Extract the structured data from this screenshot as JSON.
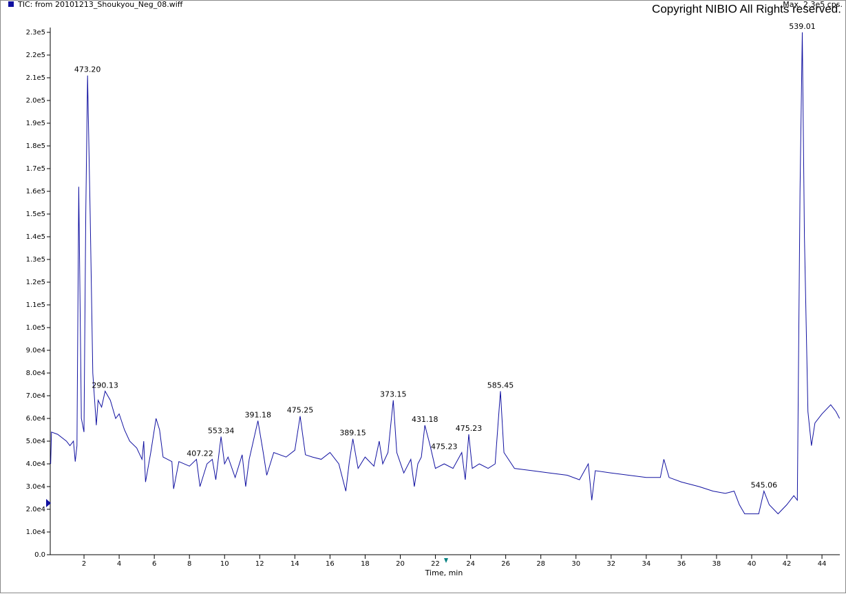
{
  "chart_data": {
    "type": "line",
    "title": "TIC: from 20101213_Shoukyou_Neg_08.wiff",
    "subtitle": "Max. 2.3e5 cps.",
    "copyright": "Copyright NIBIO All Rights reserved.",
    "xlabel": "Time, min",
    "xlim": [
      0,
      45
    ],
    "ylim": [
      0,
      230000
    ],
    "xticks": [
      2,
      4,
      6,
      8,
      10,
      12,
      14,
      16,
      18,
      20,
      22,
      24,
      26,
      28,
      30,
      32,
      34,
      36,
      38,
      40,
      42,
      44
    ],
    "yticks": [
      {
        "value": 0,
        "label": "0.0"
      },
      {
        "value": 10000,
        "label": "1.0e4"
      },
      {
        "value": 20000,
        "label": "2.0e4"
      },
      {
        "value": 30000,
        "label": "3.0e4"
      },
      {
        "value": 40000,
        "label": "4.0e4"
      },
      {
        "value": 50000,
        "label": "5.0e4"
      },
      {
        "value": 60000,
        "label": "6.0e4"
      },
      {
        "value": 70000,
        "label": "7.0e4"
      },
      {
        "value": 80000,
        "label": "8.0e4"
      },
      {
        "value": 90000,
        "label": "9.0e4"
      },
      {
        "value": 100000,
        "label": "1.0e5"
      },
      {
        "value": 110000,
        "label": "1.1e5"
      },
      {
        "value": 120000,
        "label": "1.2e5"
      },
      {
        "value": 130000,
        "label": "1.3e5"
      },
      {
        "value": 140000,
        "label": "1.4e5"
      },
      {
        "value": 150000,
        "label": "1.5e5"
      },
      {
        "value": 160000,
        "label": "1.6e5"
      },
      {
        "value": 170000,
        "label": "1.7e5"
      },
      {
        "value": 180000,
        "label": "1.8e5"
      },
      {
        "value": 190000,
        "label": "1.9e5"
      },
      {
        "value": 200000,
        "label": "2.0e5"
      },
      {
        "value": 210000,
        "label": "2.1e5"
      },
      {
        "value": 220000,
        "label": "2.2e5"
      },
      {
        "value": 230000,
        "label": "2.3e5"
      }
    ],
    "x": [
      0.1,
      0.15,
      0.5,
      1.0,
      1.2,
      1.4,
      1.5,
      1.6,
      1.7,
      1.85,
      2.0,
      2.1,
      2.2,
      2.35,
      2.5,
      2.7,
      2.8,
      3.0,
      3.2,
      3.5,
      3.8,
      4.0,
      4.3,
      4.6,
      5.0,
      5.3,
      5.4,
      5.5,
      5.8,
      6.1,
      6.3,
      6.5,
      7.0,
      7.1,
      7.4,
      8.0,
      8.4,
      8.6,
      9.0,
      9.3,
      9.5,
      9.8,
      10.0,
      10.2,
      10.6,
      11.0,
      11.2,
      11.4,
      11.9,
      12.2,
      12.4,
      12.8,
      13.5,
      14.0,
      14.3,
      14.6,
      15.0,
      15.5,
      16.0,
      16.5,
      16.9,
      17.1,
      17.3,
      17.6,
      18.0,
      18.5,
      18.8,
      19.0,
      19.3,
      19.6,
      19.8,
      20.2,
      20.6,
      20.8,
      21.0,
      21.2,
      21.4,
      21.7,
      22.0,
      22.5,
      23.0,
      23.5,
      23.7,
      23.9,
      24.1,
      24.5,
      25.0,
      25.4,
      25.7,
      25.9,
      26.5,
      27.5,
      28.5,
      29.5,
      30.2,
      30.7,
      30.9,
      31.1,
      32.0,
      33.0,
      34.0,
      34.8,
      35.0,
      35.3,
      36.0,
      37.0,
      37.8,
      38.5,
      39.0,
      39.3,
      39.6,
      40.0,
      40.4,
      40.7,
      41.0,
      41.5,
      42.0,
      42.4,
      42.6,
      42.75,
      42.88,
      43.0,
      43.2,
      43.4,
      43.6,
      44.0,
      44.5,
      44.8,
      45.0
    ],
    "series": [
      {
        "name": "TIC",
        "color": "#1010a0",
        "values": [
          40000,
          54000,
          53000,
          50000,
          48000,
          50000,
          41000,
          48000,
          162000,
          60000,
          54000,
          150000,
          211000,
          150000,
          80000,
          57000,
          68000,
          65000,
          72000,
          68000,
          60000,
          62000,
          55000,
          50000,
          47000,
          42000,
          50000,
          32000,
          45000,
          60000,
          55000,
          43000,
          41000,
          29000,
          41000,
          39000,
          42000,
          30000,
          40000,
          42000,
          33000,
          52000,
          40000,
          43000,
          34000,
          44000,
          30000,
          42000,
          59000,
          45000,
          35000,
          45000,
          43000,
          46000,
          61000,
          44000,
          43000,
          42000,
          45000,
          40000,
          28000,
          41000,
          51000,
          38000,
          43000,
          39000,
          50000,
          40000,
          45000,
          68000,
          45000,
          36000,
          42000,
          30000,
          40000,
          43000,
          57000,
          48000,
          38000,
          40000,
          38000,
          45000,
          33000,
          53000,
          38000,
          40000,
          38000,
          40000,
          72000,
          45000,
          38000,
          37000,
          36000,
          35000,
          33000,
          40000,
          24000,
          37000,
          36000,
          35000,
          34000,
          34000,
          42000,
          34000,
          32000,
          30000,
          28000,
          27000,
          28000,
          22000,
          18000,
          18000,
          18000,
          28000,
          22000,
          18000,
          22000,
          26000,
          24000,
          160000,
          230000,
          140000,
          63000,
          48000,
          58000,
          62000,
          66000,
          63000,
          60000
        ]
      }
    ],
    "annotations": [
      {
        "text": "473.20",
        "x": 2.2,
        "y": 211000
      },
      {
        "text": "290.13",
        "x": 3.2,
        "y": 72000
      },
      {
        "text": "407.22",
        "x": 8.6,
        "y": 42000
      },
      {
        "text": "553.34",
        "x": 9.8,
        "y": 52000
      },
      {
        "text": "391.18",
        "x": 11.9,
        "y": 59000
      },
      {
        "text": "475.25",
        "x": 14.3,
        "y": 61000
      },
      {
        "text": "389.15",
        "x": 17.3,
        "y": 51000
      },
      {
        "text": "373.15",
        "x": 19.6,
        "y": 68000
      },
      {
        "text": "431.18",
        "x": 21.4,
        "y": 57000
      },
      {
        "text": "475.23",
        "x": 22.5,
        "y": 45000
      },
      {
        "text": "475.23",
        "x": 23.9,
        "y": 53000
      },
      {
        "text": "585.45",
        "x": 25.7,
        "y": 72000
      },
      {
        "text": "545.06",
        "x": 40.7,
        "y": 28000
      },
      {
        "text": "539.01",
        "x": 42.88,
        "y": 230000
      }
    ]
  }
}
